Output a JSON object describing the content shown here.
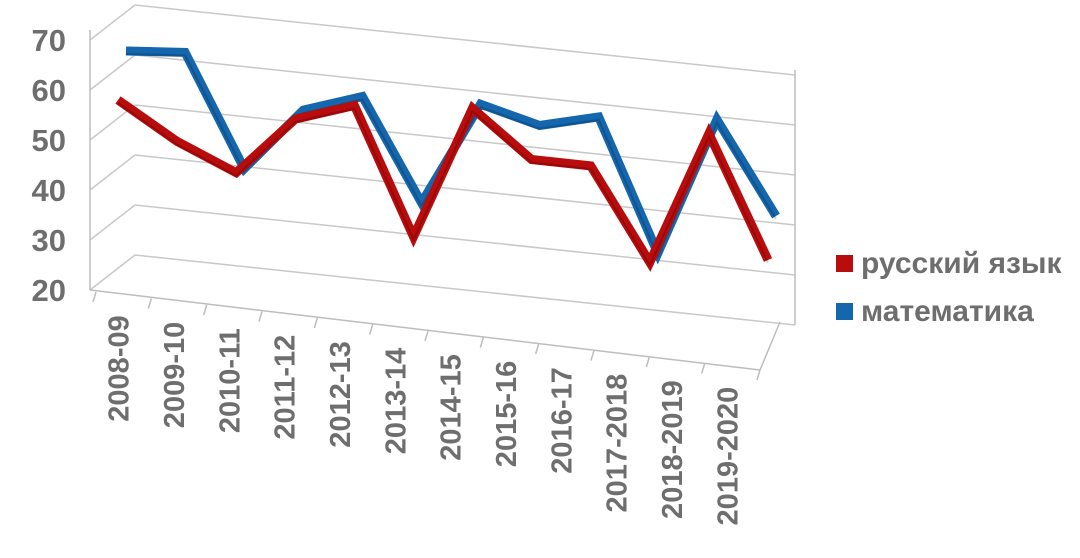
{
  "chart_data": {
    "type": "line",
    "style": "3d",
    "categories": [
      "2008-09",
      "2009-10",
      "2010-11",
      "2011-12",
      "2012-13",
      "2013-14",
      "2014-15",
      "2015-16",
      "2016-17",
      "2017-2018",
      "2018-2019",
      "2019-2020"
    ],
    "series": [
      {
        "name": "русский язык",
        "color": "#b90c0c",
        "values": [
          58,
          51,
          46,
          58,
          62,
          37,
          64,
          55,
          55,
          37,
          64,
          40
        ]
      },
      {
        "name": "математика",
        "color": "#1466ad",
        "values": [
          67,
          68,
          46,
          59,
          63,
          43,
          64,
          61,
          64,
          38,
          66,
          48
        ]
      }
    ],
    "yticks": [
      20,
      30,
      40,
      50,
      60,
      70
    ],
    "ylim": [
      20,
      70
    ],
    "grid": true,
    "legend_position": "right"
  }
}
